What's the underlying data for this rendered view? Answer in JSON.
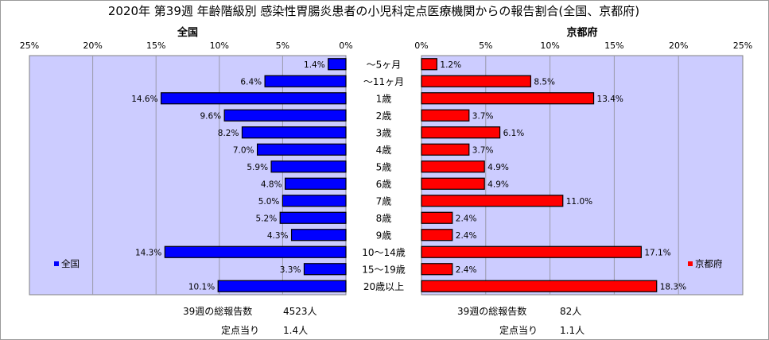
{
  "title": "2020年 第39週 年齢階級別 感染性胃腸炎患者の小児科定点医療機関からの報告割合(全国、京都府)",
  "chart_data": [
    {
      "type": "bar",
      "orientation": "horizontal",
      "title": "全国",
      "axis_direction": "reversed",
      "xlim": [
        0,
        25
      ],
      "ticks": [
        "25%",
        "20%",
        "15%",
        "10%",
        "5%",
        "0%"
      ],
      "categories": [
        "～5ヶ月",
        "～11ヶ月",
        "1歳",
        "2歳",
        "3歳",
        "4歳",
        "5歳",
        "6歳",
        "7歳",
        "8歳",
        "9歳",
        "10～14歳",
        "15～19歳",
        "20歳以上"
      ],
      "series": [
        {
          "name": "全国",
          "color": "#0000ff",
          "values": [
            1.4,
            6.4,
            14.6,
            9.6,
            8.2,
            7.0,
            5.9,
            4.8,
            5.0,
            5.2,
            4.3,
            14.3,
            3.3,
            10.1
          ],
          "labels": [
            "1.4%",
            "6.4%",
            "14.6%",
            "9.6%",
            "8.2%",
            "7.0%",
            "5.9%",
            "4.8%",
            "5.0%",
            "5.2%",
            "4.3%",
            "14.3%",
            "3.3%",
            "10.1%"
          ]
        }
      ],
      "grid": true,
      "legend_position": "left"
    },
    {
      "type": "bar",
      "orientation": "horizontal",
      "title": "京都府",
      "axis_direction": "normal",
      "xlim": [
        0,
        25
      ],
      "ticks": [
        "0%",
        "5%",
        "10%",
        "15%",
        "20%",
        "25%"
      ],
      "categories": [
        "～5ヶ月",
        "～11ヶ月",
        "1歳",
        "2歳",
        "3歳",
        "4歳",
        "5歳",
        "6歳",
        "7歳",
        "8歳",
        "9歳",
        "10～14歳",
        "15～19歳",
        "20歳以上"
      ],
      "series": [
        {
          "name": "京都府",
          "color": "#ff0000",
          "values": [
            1.2,
            8.5,
            13.4,
            3.7,
            6.1,
            3.7,
            4.9,
            4.9,
            11.0,
            2.4,
            2.4,
            17.1,
            2.4,
            18.3
          ],
          "labels": [
            "1.2%",
            "8.5%",
            "13.4%",
            "3.7%",
            "6.1%",
            "3.7%",
            "4.9%",
            "4.9%",
            "11.0%",
            "2.4%",
            "2.4%",
            "17.1%",
            "2.4%",
            "18.3%"
          ]
        }
      ],
      "grid": true,
      "legend_position": "right"
    }
  ],
  "stats": {
    "national": {
      "total_label": "39週の総報告数",
      "total_value": "4523人",
      "per_label": "定点当り",
      "per_value": "1.4人"
    },
    "kyoto": {
      "total_label": "39週の総報告数",
      "total_value": "82人",
      "per_label": "定点当り",
      "per_value": "1.1人"
    }
  },
  "colors": {
    "plot_bg": "#ccccff",
    "national_bar": "#0000ff",
    "kyoto_bar": "#ff0000"
  }
}
